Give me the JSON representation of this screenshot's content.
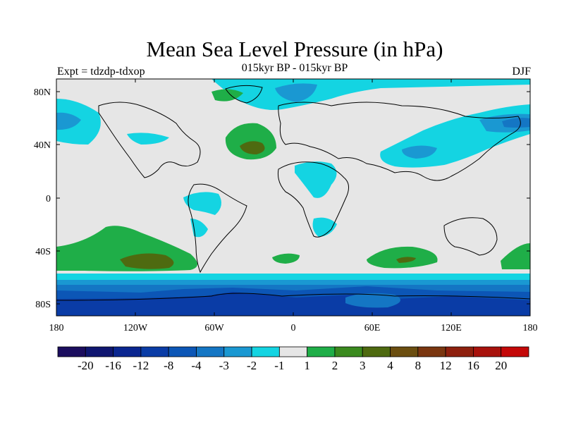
{
  "title": "Mean Sea Level Pressure (in hPa)",
  "subtitle": "015kyr BP - 015kyr BP",
  "left_label": "Expt = tdzdp-tdxop",
  "right_label": "DJF",
  "lat_ticks": [
    "80N",
    "40N",
    "0",
    "40S",
    "80S"
  ],
  "lon_ticks": [
    "180",
    "120W",
    "60W",
    "0",
    "60E",
    "120E",
    "180"
  ],
  "legend": {
    "colors": [
      "#1b0d5e",
      "#0f1670",
      "#0a2690",
      "#0a3ca6",
      "#0c56b6",
      "#1476c4",
      "#1a98d2",
      "#14d4e2",
      "#e6e6e6",
      "#1fae48",
      "#3a8a1e",
      "#4e6a10",
      "#6b4e10",
      "#7a3610",
      "#8e200e",
      "#a8120c",
      "#c40808"
    ],
    "labels": [
      "-20",
      "-16",
      "-12",
      "-8",
      "-4",
      "-3",
      "-2",
      "-1",
      "1",
      "2",
      "3",
      "4",
      "8",
      "12",
      "16",
      "20"
    ]
  },
  "colors": {
    "background": "#e6e6e6",
    "cyan": "#14d4e2",
    "light_blue": "#1a98d2",
    "mid_blue": "#1476c4",
    "deep_blue": "#0c56b6",
    "navy": "#0a3ca6",
    "green": "#1fae48",
    "dark_green": "#4e6a10"
  }
}
